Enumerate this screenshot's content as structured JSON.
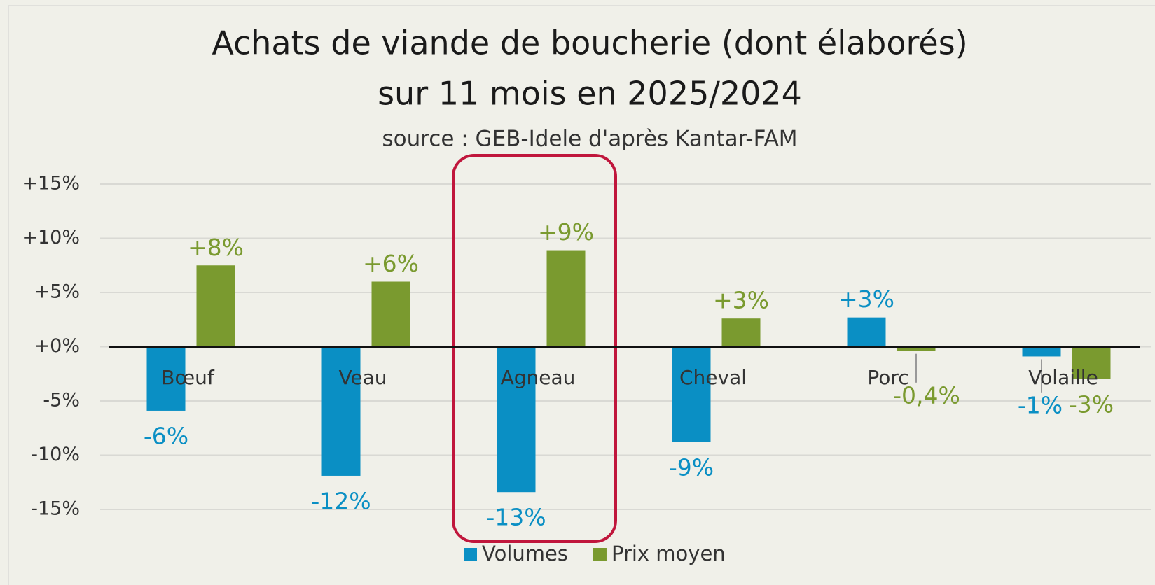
{
  "chart_data": {
    "type": "bar",
    "title": [
      "Achats de viande de boucherie (dont élaborés)",
      "sur 11 mois en 2025/2024"
    ],
    "subtitle": "source : GEB-Idele d'après Kantar-FAM",
    "categories": [
      "Bœuf",
      "Veau",
      "Agneau",
      "Cheval",
      "Porc",
      "Volaille"
    ],
    "series": [
      {
        "name": "Volumes",
        "color": "#0a8fc4",
        "values": [
          -5.9,
          -11.9,
          -13.4,
          -8.8,
          2.7,
          -0.9
        ],
        "value_labels": [
          "-6%",
          "-12%",
          "-13%",
          "-9%",
          "+3%",
          "-1%"
        ]
      },
      {
        "name": "Prix moyen",
        "color": "#7a9a2f",
        "values": [
          7.5,
          6.0,
          8.9,
          2.6,
          -0.4,
          -3.0
        ],
        "value_labels": [
          "+8%",
          "+6%",
          "+9%",
          "+3%",
          "-0,4%",
          "-3%"
        ]
      }
    ],
    "ylim": [
      -15,
      15
    ],
    "yticks": [
      {
        "value": 15,
        "label": "+15%"
      },
      {
        "value": 10,
        "label": "+10%"
      },
      {
        "value": 5,
        "label": "+5%"
      },
      {
        "value": 0,
        "label": "+0%"
      },
      {
        "value": -5,
        "label": "-5%"
      },
      {
        "value": -10,
        "label": "-10%"
      },
      {
        "value": -15,
        "label": "-15%"
      }
    ],
    "grid": true,
    "legend": "bottom"
  }
}
